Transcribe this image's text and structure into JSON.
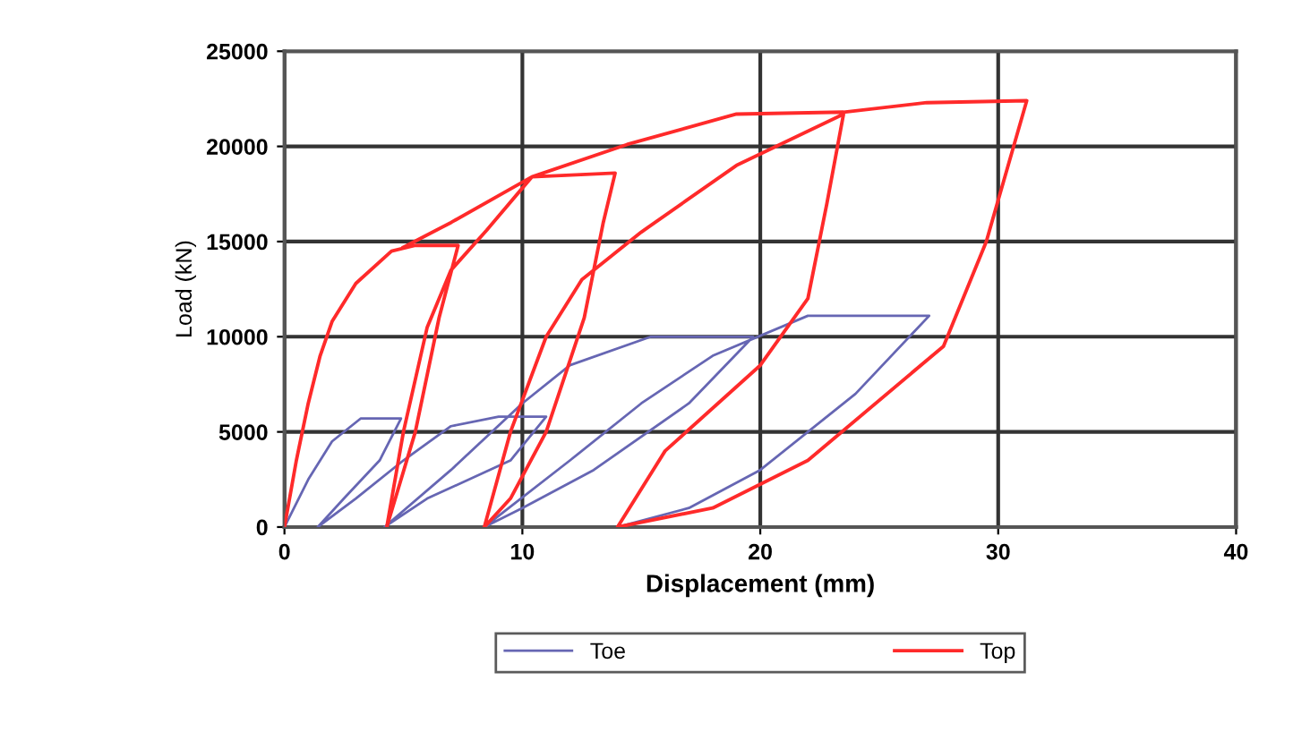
{
  "chart_data": {
    "type": "line",
    "xlabel": "Displacement (mm)",
    "ylabel": "Load (kN)",
    "xlim": [
      0,
      40
    ],
    "xticks": [
      0,
      10,
      20,
      30,
      40
    ],
    "ylim": [
      0,
      25000
    ],
    "yticks": [
      0,
      5000,
      10000,
      15000,
      20000,
      25000
    ],
    "grid": true,
    "legend": "bottom",
    "marker": "none",
    "line_style": "solid",
    "series": [
      {
        "name": "Toe",
        "color": "#6666b3",
        "x": [
          0,
          1,
          2,
          3.2,
          4.9,
          4,
          2.5,
          1.4,
          3,
          5,
          7,
          9,
          11,
          9.5,
          6,
          4.2,
          7,
          10,
          12,
          15.4,
          19.7,
          17,
          13,
          10,
          8.4,
          12,
          15,
          18,
          22,
          27.1,
          24,
          20,
          17,
          14
        ],
        "values": [
          0,
          2500,
          4500,
          5700,
          5700,
          3500,
          1500,
          0,
          1500,
          3500,
          5300,
          5800,
          5800,
          3500,
          1500,
          0,
          3000,
          6500,
          8500,
          10000,
          10000,
          6500,
          3000,
          1000,
          0,
          3500,
          6500,
          9000,
          11100,
          11100,
          7000,
          3000,
          1000,
          0
        ]
      },
      {
        "name": "Top",
        "color": "#ff2a2a",
        "x": [
          0,
          0.5,
          1,
          1.5,
          2,
          3,
          4.5,
          5.5,
          7.3,
          6.5,
          5.5,
          4.3,
          5,
          6,
          7,
          8.5,
          10.4,
          13.9,
          13.4,
          12.6,
          11,
          9.5,
          8.4,
          9.5,
          11,
          12.5,
          15,
          19,
          23.5,
          22.8,
          22,
          20,
          16,
          14,
          18,
          22,
          27.7,
          29.5,
          31.2,
          27,
          23.5,
          19,
          14.4,
          10.4,
          7,
          5
        ],
        "values": [
          0,
          3500,
          6500,
          9000,
          10800,
          12800,
          14500,
          14800,
          14800,
          11000,
          5000,
          0,
          5000,
          10500,
          13500,
          15600,
          18400,
          18600,
          16000,
          11000,
          5000,
          1500,
          0,
          5000,
          10000,
          13000,
          15500,
          19000,
          21700,
          17000,
          12000,
          8500,
          4000,
          0,
          1000,
          3500,
          9500,
          15000,
          22400,
          22300,
          21800,
          21700,
          20100,
          18400,
          16000,
          14700
        ]
      }
    ]
  }
}
